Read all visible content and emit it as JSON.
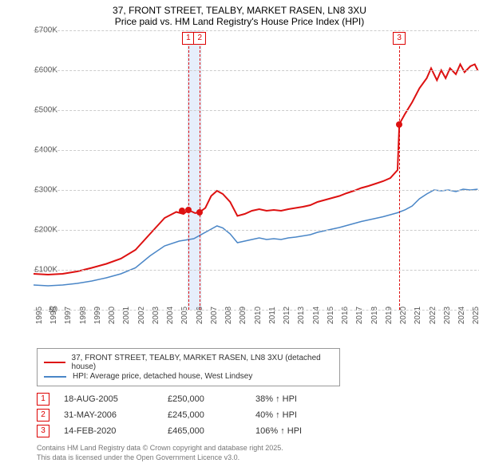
{
  "title_line1": "37, FRONT STREET, TEALBY, MARKET RASEN, LN8 3XU",
  "title_line2": "Price paid vs. HM Land Registry's House Price Index (HPI)",
  "chart": {
    "type": "line",
    "background_color": "#ffffff",
    "grid_color": "#cccccc",
    "x_years": [
      1995,
      1996,
      1997,
      1998,
      1999,
      2000,
      2001,
      2002,
      2003,
      2004,
      2005,
      2006,
      2007,
      2008,
      2009,
      2010,
      2011,
      2012,
      2013,
      2014,
      2015,
      2016,
      2017,
      2018,
      2019,
      2020,
      2021,
      2022,
      2023,
      2024,
      2025
    ],
    "xlim": [
      1995,
      2025.7
    ],
    "ylim": [
      0,
      700
    ],
    "ytick_step": 100,
    "ytick_labels": [
      "£0",
      "£100K",
      "£200K",
      "£300K",
      "£400K",
      "£500K",
      "£600K",
      "£700K"
    ],
    "series": [
      {
        "name": "37, FRONT STREET, TEALBY, MARKET RASEN, LN8 3XU (detached house)",
        "color": "#dd1111",
        "line_width": 2,
        "data": [
          [
            1995,
            90
          ],
          [
            1996,
            88
          ],
          [
            1997,
            90
          ],
          [
            1998,
            96
          ],
          [
            1999,
            105
          ],
          [
            2000,
            115
          ],
          [
            2001,
            128
          ],
          [
            2002,
            150
          ],
          [
            2003,
            190
          ],
          [
            2004,
            230
          ],
          [
            2004.8,
            245
          ],
          [
            2005.3,
            240
          ],
          [
            2005.63,
            250
          ],
          [
            2006.1,
            242
          ],
          [
            2006.42,
            245
          ],
          [
            2006.8,
            255
          ],
          [
            2007.2,
            285
          ],
          [
            2007.6,
            298
          ],
          [
            2008,
            290
          ],
          [
            2008.5,
            270
          ],
          [
            2009,
            235
          ],
          [
            2009.5,
            240
          ],
          [
            2010,
            248
          ],
          [
            2010.5,
            252
          ],
          [
            2011,
            248
          ],
          [
            2011.5,
            250
          ],
          [
            2012,
            248
          ],
          [
            2012.5,
            252
          ],
          [
            2013,
            255
          ],
          [
            2013.5,
            258
          ],
          [
            2014,
            262
          ],
          [
            2014.5,
            270
          ],
          [
            2015,
            275
          ],
          [
            2015.5,
            280
          ],
          [
            2016,
            285
          ],
          [
            2016.5,
            292
          ],
          [
            2017,
            298
          ],
          [
            2017.5,
            305
          ],
          [
            2018,
            310
          ],
          [
            2018.5,
            316
          ],
          [
            2019,
            322
          ],
          [
            2019.5,
            330
          ],
          [
            2020,
            350
          ],
          [
            2020.12,
            465
          ],
          [
            2020.5,
            490
          ],
          [
            2021,
            520
          ],
          [
            2021.5,
            555
          ],
          [
            2022,
            580
          ],
          [
            2022.3,
            605
          ],
          [
            2022.7,
            575
          ],
          [
            2023,
            600
          ],
          [
            2023.3,
            580
          ],
          [
            2023.6,
            605
          ],
          [
            2024,
            590
          ],
          [
            2024.3,
            615
          ],
          [
            2024.6,
            595
          ],
          [
            2025,
            610
          ],
          [
            2025.3,
            615
          ],
          [
            2025.5,
            600
          ]
        ]
      },
      {
        "name": "HPI: Average price, detached house, West Lindsey",
        "color": "#4a86c7",
        "line_width": 1.5,
        "data": [
          [
            1995,
            62
          ],
          [
            1996,
            60
          ],
          [
            1997,
            62
          ],
          [
            1998,
            66
          ],
          [
            1999,
            72
          ],
          [
            2000,
            80
          ],
          [
            2001,
            90
          ],
          [
            2002,
            105
          ],
          [
            2003,
            135
          ],
          [
            2004,
            160
          ],
          [
            2005,
            172
          ],
          [
            2006,
            178
          ],
          [
            2007,
            198
          ],
          [
            2007.6,
            210
          ],
          [
            2008,
            205
          ],
          [
            2008.5,
            190
          ],
          [
            2009,
            168
          ],
          [
            2009.5,
            172
          ],
          [
            2010,
            176
          ],
          [
            2010.5,
            180
          ],
          [
            2011,
            176
          ],
          [
            2011.5,
            178
          ],
          [
            2012,
            176
          ],
          [
            2012.5,
            180
          ],
          [
            2013,
            182
          ],
          [
            2013.5,
            185
          ],
          [
            2014,
            188
          ],
          [
            2014.5,
            194
          ],
          [
            2015,
            198
          ],
          [
            2015.5,
            202
          ],
          [
            2016,
            206
          ],
          [
            2016.5,
            211
          ],
          [
            2017,
            216
          ],
          [
            2017.5,
            221
          ],
          [
            2018,
            225
          ],
          [
            2018.5,
            229
          ],
          [
            2019,
            233
          ],
          [
            2019.5,
            238
          ],
          [
            2020,
            243
          ],
          [
            2020.5,
            250
          ],
          [
            2021,
            260
          ],
          [
            2021.5,
            278
          ],
          [
            2022,
            290
          ],
          [
            2022.5,
            300
          ],
          [
            2023,
            298
          ],
          [
            2023.5,
            300
          ],
          [
            2024,
            296
          ],
          [
            2024.5,
            302
          ],
          [
            2025,
            300
          ],
          [
            2025.5,
            302
          ]
        ]
      }
    ],
    "markers": [
      {
        "x": 2005.2,
        "y": 248,
        "color": "#dd1111"
      },
      {
        "x": 2005.63,
        "y": 250,
        "color": "#dd1111"
      },
      {
        "x": 2006.42,
        "y": 245,
        "color": "#dd1111"
      },
      {
        "x": 2020.12,
        "y": 465,
        "color": "#dd1111"
      }
    ],
    "annotations": [
      {
        "n": "1",
        "x": 2005.63
      },
      {
        "n": "2",
        "x": 2006.42
      },
      {
        "n": "3",
        "x": 2020.12
      }
    ],
    "vband": {
      "from": 2005.55,
      "to": 2006.55,
      "color": "#e6eefb"
    }
  },
  "legend": {
    "items": [
      {
        "color": "#dd1111",
        "label": "37, FRONT STREET, TEALBY, MARKET RASEN, LN8 3XU (detached house)"
      },
      {
        "color": "#4a86c7",
        "label": "HPI: Average price, detached house, West Lindsey"
      }
    ]
  },
  "events": [
    {
      "n": "1",
      "date": "18-AUG-2005",
      "price": "£250,000",
      "delta": "38% ↑ HPI"
    },
    {
      "n": "2",
      "date": "31-MAY-2006",
      "price": "£245,000",
      "delta": "40% ↑ HPI"
    },
    {
      "n": "3",
      "date": "14-FEB-2020",
      "price": "£465,000",
      "delta": "106% ↑ HPI"
    }
  ],
  "footer_line1": "Contains HM Land Registry data © Crown copyright and database right 2025.",
  "footer_line2": "This data is licensed under the Open Government Licence v3.0."
}
